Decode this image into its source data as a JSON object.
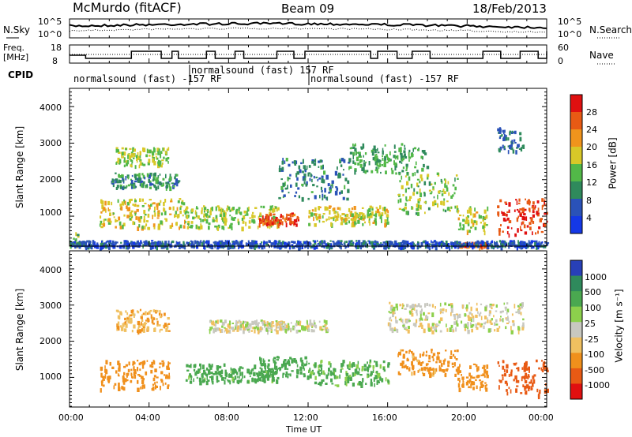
{
  "header": {
    "station": "McMurdo (fitACF)",
    "beam": "Beam 09",
    "date": "18/Feb/2013"
  },
  "top_panels": {
    "noise_left_label": "N.Sky",
    "noise_right_label": "N.Search",
    "noise_ticks": [
      "10^5",
      "10^0"
    ],
    "freq_label_1": "Freq.",
    "freq_label_2": "[MHz]",
    "freq_ticks": [
      "18",
      "8"
    ],
    "nave_label": "Nave",
    "nave_ticks": [
      "60",
      "0"
    ],
    "cpid_label": "CPID",
    "cpid_segments": [
      {
        "text": "normalsound (fast) -157 RF",
        "start_hour": 0
      },
      {
        "text": "normalsound (fast) 157 RF",
        "start_hour": 6
      },
      {
        "text": "normalsound (fast) -157 RF",
        "start_hour": 12
      }
    ]
  },
  "axes": {
    "ylabel": "Slant Range [km]",
    "xlabel": "Time UT",
    "y_ticks": [
      "1000",
      "2000",
      "3000",
      "4000"
    ],
    "x_ticks": [
      "00:00",
      "04:00",
      "08:00",
      "12:00",
      "16:00",
      "20:00",
      "00:00"
    ]
  },
  "power_scale": {
    "label": "Power [dB]",
    "ticks": [
      "4",
      "8",
      "12",
      "16",
      "20",
      "24",
      "28"
    ],
    "colors": [
      "#1438e6",
      "#2a52b8",
      "#2f8a5c",
      "#52b848",
      "#d8c828",
      "#f0941c",
      "#e85a14",
      "#e01010"
    ]
  },
  "velocity_scale": {
    "label": "Velocity [m s⁻¹]",
    "ticks": [
      "1000",
      "500",
      "100",
      "25",
      "-25",
      "-100",
      "-500",
      "-1000"
    ],
    "colors": [
      "#2840b8",
      "#2f8a5c",
      "#4aa850",
      "#8cd04c",
      "#c8c8c0",
      "#f0c060",
      "#f0901c",
      "#e85a14",
      "#e01010"
    ]
  },
  "chart_data": {
    "type": "heatmap",
    "x_range_hours": [
      0,
      24
    ],
    "y_range_km": [
      180,
      4500
    ],
    "power_bands": [
      {
        "t0": 0.0,
        "t1": 0.4,
        "r0": 180,
        "r1": 600,
        "v": 14
      },
      {
        "t0": 1.5,
        "t1": 5.8,
        "r0": 700,
        "r1": 1500,
        "v": 18
      },
      {
        "t0": 2.3,
        "t1": 5.0,
        "r0": 2400,
        "r1": 2900,
        "v": 16
      },
      {
        "t0": 2.0,
        "t1": 5.5,
        "r0": 1800,
        "r1": 2200,
        "v": 10
      },
      {
        "t0": 5.8,
        "t1": 10.5,
        "r0": 700,
        "r1": 1300,
        "v": 16
      },
      {
        "t0": 9.5,
        "t1": 11.5,
        "r0": 800,
        "r1": 1100,
        "v": 27
      },
      {
        "t0": 10.5,
        "t1": 14.0,
        "r0": 1500,
        "r1": 2600,
        "v": 9
      },
      {
        "t0": 12.0,
        "t1": 16.0,
        "r0": 800,
        "r1": 1300,
        "v": 18
      },
      {
        "t0": 14.0,
        "t1": 18.0,
        "r0": 2200,
        "r1": 3000,
        "v": 12
      },
      {
        "t0": 16.5,
        "t1": 19.5,
        "r0": 1100,
        "r1": 2200,
        "v": 15
      },
      {
        "t0": 19.5,
        "t1": 21.0,
        "r0": 600,
        "r1": 1300,
        "v": 17
      },
      {
        "t0": 21.5,
        "t1": 24.0,
        "r0": 500,
        "r1": 1500,
        "v": 28
      },
      {
        "t0": 19.5,
        "t1": 21.0,
        "r0": 180,
        "r1": 300,
        "v": 26
      },
      {
        "t0": 21.5,
        "t1": 22.8,
        "r0": 2800,
        "r1": 3500,
        "v": 8
      },
      {
        "t0": 0.0,
        "t1": 24.0,
        "r0": 180,
        "r1": 350,
        "v": 6
      }
    ],
    "velocity_bands": [
      {
        "t0": 1.5,
        "t1": 5.0,
        "r0": 700,
        "r1": 1500,
        "v": -300
      },
      {
        "t0": 5.8,
        "t1": 10.5,
        "r0": 900,
        "r1": 1400,
        "v": 150
      },
      {
        "t0": 9.5,
        "t1": 12.0,
        "r0": 1000,
        "r1": 1600,
        "v": 200
      },
      {
        "t0": 12.0,
        "t1": 16.0,
        "r0": 800,
        "r1": 1500,
        "v": 120
      },
      {
        "t0": 7.0,
        "t1": 13.0,
        "r0": 2300,
        "r1": 2600,
        "v": 0
      },
      {
        "t0": 16.5,
        "t1": 19.5,
        "r0": 1100,
        "r1": 1800,
        "v": -150
      },
      {
        "t0": 19.5,
        "t1": 21.0,
        "r0": 700,
        "r1": 1400,
        "v": -400
      },
      {
        "t0": 21.5,
        "t1": 24.0,
        "r0": 500,
        "r1": 1500,
        "v": -600
      },
      {
        "t0": 2.3,
        "t1": 5.0,
        "r0": 2300,
        "r1": 2900,
        "v": -80
      },
      {
        "t0": 16.0,
        "t1": 22.8,
        "r0": 2300,
        "r1": 3100,
        "v": 0
      }
    ]
  }
}
